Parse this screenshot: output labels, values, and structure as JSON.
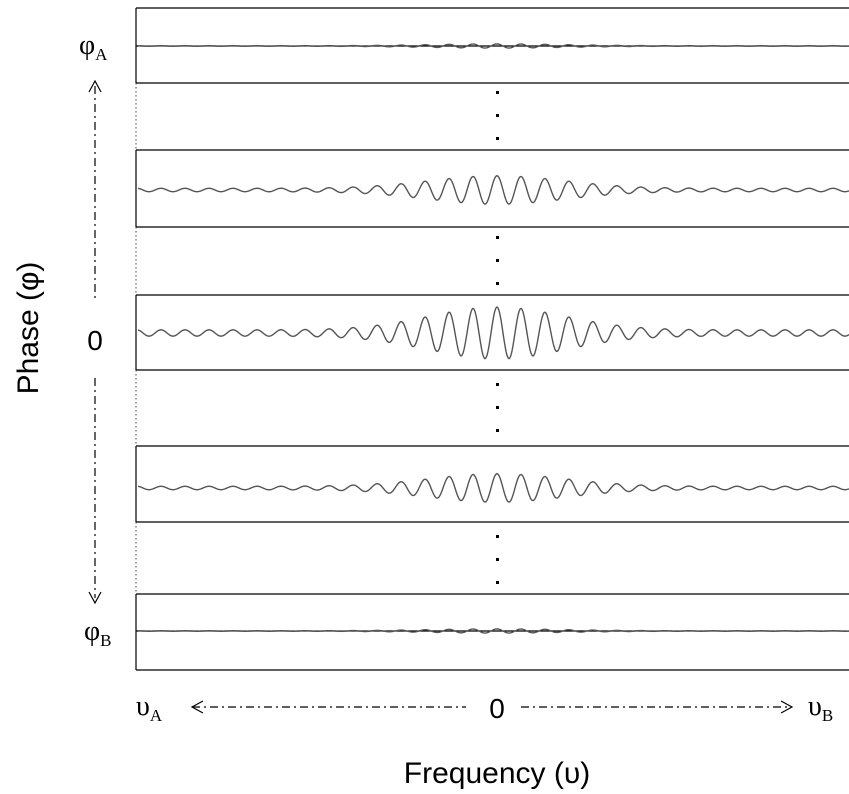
{
  "diagram": {
    "y_axis_title": "Phase (φ)",
    "x_axis_title": "Frequency (υ)",
    "y_top_label": {
      "symbol": "φ",
      "subscript": "A"
    },
    "y_zero_label": "0",
    "y_bottom_label": {
      "symbol": "φ",
      "subscript": "B"
    },
    "x_left_label": {
      "symbol": "υ",
      "subscript": "A"
    },
    "x_zero_label": "0",
    "x_right_label": {
      "symbol": "υ",
      "subscript": "B"
    },
    "line_color": "#000000",
    "wave_color": "#555555",
    "strips": [
      {
        "name": "phi-a",
        "relative_amplitude": 0.08,
        "label": "top"
      },
      {
        "name": "intermediate-upper",
        "relative_amplitude": 0.55
      },
      {
        "name": "zero-phase",
        "relative_amplitude": 1.0,
        "label": "zero"
      },
      {
        "name": "intermediate-lower",
        "relative_amplitude": 0.55
      },
      {
        "name": "phi-b",
        "relative_amplitude": 0.08,
        "label": "bottom"
      }
    ]
  }
}
